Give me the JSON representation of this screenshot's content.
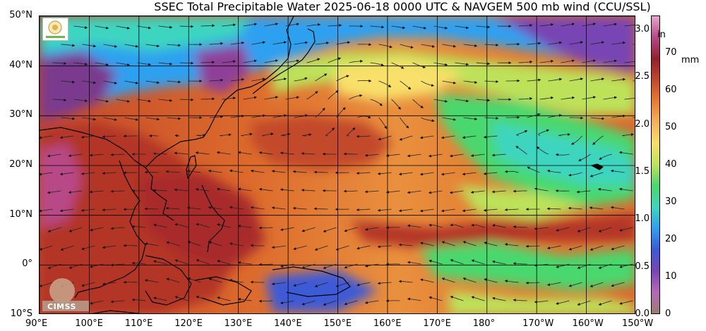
{
  "title": "SSEC Total Precipitable Water  2025-06-18 0000 UTC & NAVGEM 500 mb wind (CCU/SSL)",
  "map": {
    "lat_labels": [
      "50°N",
      "40°N",
      "30°N",
      "20°N",
      "10°N",
      "0°",
      "10°S"
    ],
    "lon_labels": [
      "90°E",
      "100°E",
      "110°E",
      "120°E",
      "130°E",
      "140°E",
      "150°E",
      "160°E",
      "170°E",
      "180°",
      "170°W",
      "160°W",
      "150°W"
    ],
    "lat_values": [
      50,
      40,
      30,
      20,
      10,
      0,
      -10
    ],
    "lon_values": [
      90,
      100,
      110,
      120,
      130,
      140,
      150,
      160,
      170,
      180,
      190,
      200,
      210
    ],
    "lat_range": [
      -10,
      50
    ],
    "lon_range": [
      90,
      210
    ],
    "grid": true
  },
  "colorbar": {
    "unit_in": "in",
    "unit_mm": "mm",
    "ticks_in": [
      "3.0",
      "2.5",
      "2.0",
      "1.5",
      "1.0",
      "0.5",
      "0.0"
    ],
    "ticks_in_values": [
      3.0,
      2.5,
      2.0,
      1.5,
      1.0,
      0.5,
      0.0
    ],
    "ticks_mm": [
      "70",
      "60",
      "50",
      "40",
      "30",
      "20",
      "10",
      "0"
    ],
    "ticks_mm_values": [
      70,
      60,
      50,
      40,
      30,
      20,
      10,
      0
    ],
    "range_in": [
      0,
      3.15
    ],
    "colors": [
      "#9e7b73",
      "#b469b8",
      "#7845b4",
      "#3c5ad7",
      "#2ea0f0",
      "#3ed5c0",
      "#4ad86e",
      "#bde25a",
      "#f8e06a",
      "#f7b15a",
      "#e77b32",
      "#c2482a",
      "#93202f",
      "#b84888",
      "#e8a6cc"
    ]
  },
  "logos": {
    "cimss": "CIMSS"
  }
}
